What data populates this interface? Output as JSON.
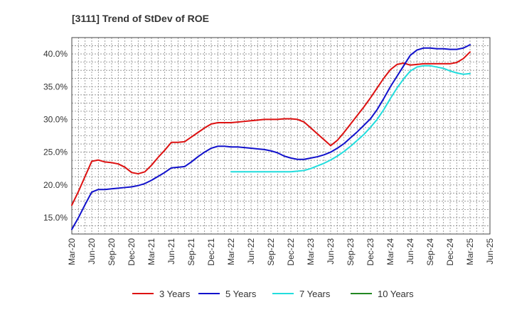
{
  "chart_data": {
    "type": "line",
    "title": "[3111]  Trend of StDev of ROE",
    "xlabel": "",
    "ylabel": "",
    "ylim": [
      12.5,
      42.5
    ],
    "yticks": [
      15,
      20,
      25,
      30,
      35,
      40
    ],
    "ytick_labels": [
      "15.0%",
      "20.0%",
      "25.0%",
      "30.0%",
      "35.0%",
      "40.0%"
    ],
    "x_ticks": [
      "Mar-20",
      "Jun-20",
      "Sep-20",
      "Dec-20",
      "Mar-21",
      "Jun-21",
      "Sep-21",
      "Dec-21",
      "Mar-22",
      "Jun-22",
      "Sep-22",
      "Dec-22",
      "Mar-23",
      "Jun-23",
      "Sep-23",
      "Dec-23",
      "Mar-24",
      "Jun-24",
      "Sep-24",
      "Dec-24",
      "Mar-25",
      "Jun-25"
    ],
    "grid": true,
    "legend_position": "bottom",
    "series": [
      {
        "name": "3 Years",
        "color": "#dd1111",
        "points": [
          [
            "2020-03",
            16.9
          ],
          [
            "2020-04",
            19.0
          ],
          [
            "2020-05",
            21.3
          ],
          [
            "2020-06",
            23.6
          ],
          [
            "2020-07",
            23.8
          ],
          [
            "2020-08",
            23.5
          ],
          [
            "2020-09",
            23.4
          ],
          [
            "2020-10",
            23.2
          ],
          [
            "2020-11",
            22.7
          ],
          [
            "2020-12",
            21.9
          ],
          [
            "2021-01",
            21.7
          ],
          [
            "2021-02",
            22.0
          ],
          [
            "2021-03",
            23.0
          ],
          [
            "2021-04",
            24.2
          ],
          [
            "2021-05",
            25.3
          ],
          [
            "2021-06",
            26.5
          ],
          [
            "2021-07",
            26.5
          ],
          [
            "2021-08",
            26.6
          ],
          [
            "2021-09",
            27.3
          ],
          [
            "2021-10",
            28.0
          ],
          [
            "2021-11",
            28.7
          ],
          [
            "2021-12",
            29.3
          ],
          [
            "2022-01",
            29.5
          ],
          [
            "2022-02",
            29.5
          ],
          [
            "2022-03",
            29.5
          ],
          [
            "2022-04",
            29.6
          ],
          [
            "2022-05",
            29.7
          ],
          [
            "2022-06",
            29.8
          ],
          [
            "2022-07",
            29.9
          ],
          [
            "2022-08",
            30.0
          ],
          [
            "2022-09",
            30.0
          ],
          [
            "2022-10",
            30.0
          ],
          [
            "2022-11",
            30.1
          ],
          [
            "2022-12",
            30.1
          ],
          [
            "2023-01",
            30.0
          ],
          [
            "2023-02",
            29.6
          ],
          [
            "2023-03",
            28.7
          ],
          [
            "2023-04",
            27.8
          ],
          [
            "2023-05",
            26.9
          ],
          [
            "2023-06",
            26.0
          ],
          [
            "2023-07",
            26.8
          ],
          [
            "2023-08",
            28.0
          ],
          [
            "2023-09",
            29.3
          ],
          [
            "2023-10",
            30.6
          ],
          [
            "2023-11",
            31.9
          ],
          [
            "2023-12",
            33.3
          ],
          [
            "2024-01",
            34.8
          ],
          [
            "2024-02",
            36.3
          ],
          [
            "2024-03",
            37.6
          ],
          [
            "2024-04",
            38.4
          ],
          [
            "2024-05",
            38.6
          ],
          [
            "2024-06",
            38.3
          ],
          [
            "2024-07",
            38.4
          ],
          [
            "2024-08",
            38.5
          ],
          [
            "2024-09",
            38.5
          ],
          [
            "2024-10",
            38.5
          ],
          [
            "2024-11",
            38.5
          ],
          [
            "2024-12",
            38.5
          ],
          [
            "2025-01",
            38.7
          ],
          [
            "2025-02",
            39.3
          ],
          [
            "2025-03",
            40.3
          ]
        ]
      },
      {
        "name": "5 Years",
        "color": "#1111cc",
        "points": [
          [
            "2020-03",
            13.2
          ],
          [
            "2020-04",
            15.0
          ],
          [
            "2020-05",
            17.0
          ],
          [
            "2020-06",
            18.9
          ],
          [
            "2020-07",
            19.3
          ],
          [
            "2020-08",
            19.3
          ],
          [
            "2020-09",
            19.4
          ],
          [
            "2020-10",
            19.5
          ],
          [
            "2020-11",
            19.6
          ],
          [
            "2020-12",
            19.7
          ],
          [
            "2021-01",
            19.9
          ],
          [
            "2021-02",
            20.2
          ],
          [
            "2021-03",
            20.7
          ],
          [
            "2021-04",
            21.3
          ],
          [
            "2021-05",
            21.9
          ],
          [
            "2021-06",
            22.6
          ],
          [
            "2021-07",
            22.7
          ],
          [
            "2021-08",
            22.8
          ],
          [
            "2021-09",
            23.5
          ],
          [
            "2021-10",
            24.3
          ],
          [
            "2021-11",
            25.0
          ],
          [
            "2021-12",
            25.6
          ],
          [
            "2022-01",
            25.9
          ],
          [
            "2022-02",
            25.9
          ],
          [
            "2022-03",
            25.8
          ],
          [
            "2022-04",
            25.8
          ],
          [
            "2022-05",
            25.7
          ],
          [
            "2022-06",
            25.6
          ],
          [
            "2022-07",
            25.5
          ],
          [
            "2022-08",
            25.4
          ],
          [
            "2022-09",
            25.2
          ],
          [
            "2022-10",
            24.9
          ],
          [
            "2022-11",
            24.4
          ],
          [
            "2022-12",
            24.1
          ],
          [
            "2023-01",
            23.9
          ],
          [
            "2023-02",
            23.9
          ],
          [
            "2023-03",
            24.1
          ],
          [
            "2023-04",
            24.3
          ],
          [
            "2023-05",
            24.6
          ],
          [
            "2023-06",
            25.0
          ],
          [
            "2023-07",
            25.6
          ],
          [
            "2023-08",
            26.3
          ],
          [
            "2023-09",
            27.2
          ],
          [
            "2023-10",
            28.1
          ],
          [
            "2023-11",
            29.1
          ],
          [
            "2023-12",
            30.1
          ],
          [
            "2024-01",
            31.5
          ],
          [
            "2024-02",
            33.2
          ],
          [
            "2024-03",
            35.0
          ],
          [
            "2024-04",
            36.6
          ],
          [
            "2024-05",
            38.2
          ],
          [
            "2024-06",
            39.8
          ],
          [
            "2024-07",
            40.6
          ],
          [
            "2024-08",
            40.9
          ],
          [
            "2024-09",
            40.9
          ],
          [
            "2024-10",
            40.8
          ],
          [
            "2024-11",
            40.8
          ],
          [
            "2024-12",
            40.7
          ],
          [
            "2025-01",
            40.7
          ],
          [
            "2025-02",
            40.9
          ],
          [
            "2025-03",
            41.4
          ]
        ]
      },
      {
        "name": "7 Years",
        "color": "#22dddd",
        "points": [
          [
            "2022-03",
            22.0
          ],
          [
            "2022-04",
            22.0
          ],
          [
            "2022-05",
            22.0
          ],
          [
            "2022-06",
            22.0
          ],
          [
            "2022-07",
            22.0
          ],
          [
            "2022-08",
            22.0
          ],
          [
            "2022-09",
            22.0
          ],
          [
            "2022-10",
            22.0
          ],
          [
            "2022-11",
            22.0
          ],
          [
            "2022-12",
            22.0
          ],
          [
            "2023-01",
            22.1
          ],
          [
            "2023-02",
            22.2
          ],
          [
            "2023-03",
            22.5
          ],
          [
            "2023-04",
            22.9
          ],
          [
            "2023-05",
            23.3
          ],
          [
            "2023-06",
            23.8
          ],
          [
            "2023-07",
            24.4
          ],
          [
            "2023-08",
            25.1
          ],
          [
            "2023-09",
            25.9
          ],
          [
            "2023-10",
            26.8
          ],
          [
            "2023-11",
            27.7
          ],
          [
            "2023-12",
            28.8
          ],
          [
            "2024-01",
            30.0
          ],
          [
            "2024-02",
            31.5
          ],
          [
            "2024-03",
            33.2
          ],
          [
            "2024-04",
            34.8
          ],
          [
            "2024-05",
            36.2
          ],
          [
            "2024-06",
            37.4
          ],
          [
            "2024-07",
            38.0
          ],
          [
            "2024-08",
            38.2
          ],
          [
            "2024-09",
            38.2
          ],
          [
            "2024-10",
            38.0
          ],
          [
            "2024-11",
            37.8
          ],
          [
            "2024-12",
            37.4
          ],
          [
            "2025-01",
            37.1
          ],
          [
            "2025-02",
            36.9
          ],
          [
            "2025-03",
            37.0
          ]
        ]
      },
      {
        "name": "10 Years",
        "color": "#228822",
        "points": []
      }
    ]
  }
}
